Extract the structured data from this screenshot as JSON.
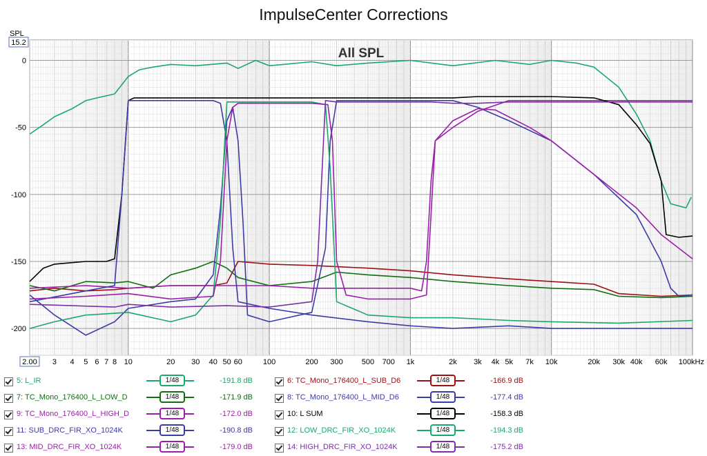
{
  "title": "ImpulseCenter Corrections",
  "chart_data": {
    "type": "line",
    "inner_title": "All SPL",
    "y_axis_label": "SPL",
    "y_top_readout": "15.2",
    "x_unit": "kHz",
    "x_scale": "log",
    "xlim": [
      2,
      100000
    ],
    "ylim": [
      -220,
      15.2
    ],
    "grid": true,
    "x_ticks": [
      {
        "v": 2,
        "label": "2.00"
      },
      {
        "v": 3,
        "label": "3"
      },
      {
        "v": 4,
        "label": "4"
      },
      {
        "v": 5,
        "label": "5"
      },
      {
        "v": 6,
        "label": "6"
      },
      {
        "v": 7,
        "label": "7"
      },
      {
        "v": 8,
        "label": "8"
      },
      {
        "v": 10,
        "label": "10"
      },
      {
        "v": 20,
        "label": "20"
      },
      {
        "v": 30,
        "label": "30"
      },
      {
        "v": 40,
        "label": "40"
      },
      {
        "v": 50,
        "label": "50"
      },
      {
        "v": 60,
        "label": "60"
      },
      {
        "v": 100,
        "label": "100"
      },
      {
        "v": 200,
        "label": "200"
      },
      {
        "v": 300,
        "label": "300"
      },
      {
        "v": 500,
        "label": "500"
      },
      {
        "v": 700,
        "label": "700"
      },
      {
        "v": 1000,
        "label": "1k"
      },
      {
        "v": 2000,
        "label": "2k"
      },
      {
        "v": 3000,
        "label": "3k"
      },
      {
        "v": 4000,
        "label": "4k"
      },
      {
        "v": 5000,
        "label": "5k"
      },
      {
        "v": 7000,
        "label": "7k"
      },
      {
        "v": 10000,
        "label": "10k"
      },
      {
        "v": 20000,
        "label": "20k"
      },
      {
        "v": 30000,
        "label": "30k"
      },
      {
        "v": 40000,
        "label": "40k"
      },
      {
        "v": 60000,
        "label": "60k"
      },
      {
        "v": 100000,
        "label": "100kHz"
      }
    ],
    "y_ticks": [
      {
        "v": 0,
        "label": "0"
      },
      {
        "v": -50,
        "label": "-50"
      },
      {
        "v": -100,
        "label": "-100"
      },
      {
        "v": -150,
        "label": "-150"
      },
      {
        "v": -200,
        "label": "-200"
      }
    ],
    "series": [
      {
        "name": "5: L_IR",
        "color": "#1aa86a",
        "value": "-191.8 dB",
        "points": [
          [
            2,
            -55
          ],
          [
            2.5,
            -48
          ],
          [
            3,
            -42
          ],
          [
            4,
            -36
          ],
          [
            5,
            -30
          ],
          [
            6,
            -28
          ],
          [
            8,
            -25
          ],
          [
            10,
            -12
          ],
          [
            12,
            -7
          ],
          [
            15,
            -5
          ],
          [
            20,
            -3
          ],
          [
            30,
            -4
          ],
          [
            50,
            -2
          ],
          [
            60,
            -6
          ],
          [
            80,
            0
          ],
          [
            100,
            -4
          ],
          [
            200,
            -1
          ],
          [
            300,
            -4
          ],
          [
            500,
            -2
          ],
          [
            1000,
            0
          ],
          [
            2000,
            -4
          ],
          [
            4000,
            0
          ],
          [
            7000,
            -3
          ],
          [
            10000,
            0
          ],
          [
            15000,
            -2
          ],
          [
            20000,
            -5
          ],
          [
            30000,
            -20
          ],
          [
            40000,
            -40
          ],
          [
            50000,
            -60
          ],
          [
            60000,
            -90
          ],
          [
            70000,
            -107
          ],
          [
            90000,
            -110
          ],
          [
            98000,
            -102
          ]
        ]
      },
      {
        "name": "6: TC_Mono_176400_L_SUB_D6",
        "color": "#9b1010",
        "value": "-166.9 dB",
        "points": [
          [
            2,
            -172
          ],
          [
            3,
            -170
          ],
          [
            5,
            -172
          ],
          [
            8,
            -171
          ],
          [
            10,
            -170
          ],
          [
            20,
            -168
          ],
          [
            40,
            -168
          ],
          [
            50,
            -166
          ],
          [
            60,
            -150
          ],
          [
            100,
            -152
          ],
          [
            200,
            -153
          ],
          [
            500,
            -155
          ],
          [
            1000,
            -157
          ],
          [
            2000,
            -160
          ],
          [
            5000,
            -163
          ],
          [
            10000,
            -165
          ],
          [
            20000,
            -167
          ],
          [
            30000,
            -174
          ],
          [
            60000,
            -176
          ],
          [
            100000,
            -175
          ]
        ]
      },
      {
        "name": "7: TC_Mono_176400_L_LOW_D",
        "color": "#0f6e0f",
        "value": "-171.9 dB",
        "points": [
          [
            2,
            -168
          ],
          [
            3,
            -172
          ],
          [
            5,
            -165
          ],
          [
            8,
            -166
          ],
          [
            10,
            -165
          ],
          [
            15,
            -170
          ],
          [
            20,
            -160
          ],
          [
            30,
            -155
          ],
          [
            40,
            -150
          ],
          [
            50,
            -155
          ],
          [
            60,
            -162
          ],
          [
            100,
            -168
          ],
          [
            200,
            -165
          ],
          [
            300,
            -158
          ],
          [
            500,
            -160
          ],
          [
            1000,
            -162
          ],
          [
            2000,
            -165
          ],
          [
            5000,
            -168
          ],
          [
            10000,
            -170
          ],
          [
            20000,
            -171
          ],
          [
            30000,
            -176
          ],
          [
            60000,
            -177
          ],
          [
            100000,
            -176
          ]
        ]
      },
      {
        "name": "8: TC_Mono_176400_L_MID_D6",
        "color": "#3b3ba8",
        "value": "-177.4 dB",
        "points": [
          [
            2,
            -175
          ],
          [
            3,
            -190
          ],
          [
            5,
            -205
          ],
          [
            8,
            -195
          ],
          [
            10,
            -185
          ],
          [
            20,
            -180
          ],
          [
            30,
            -178
          ],
          [
            40,
            -160
          ],
          [
            45,
            -110
          ],
          [
            50,
            -45
          ],
          [
            55,
            -35
          ],
          [
            60,
            -60
          ],
          [
            65,
            -120
          ],
          [
            70,
            -190
          ],
          [
            100,
            -195
          ],
          [
            200,
            -188
          ],
          [
            250,
            -140
          ],
          [
            270,
            -60
          ],
          [
            300,
            -30
          ],
          [
            500,
            -30
          ],
          [
            1000,
            -30
          ],
          [
            2000,
            -30
          ],
          [
            3000,
            -35
          ],
          [
            5000,
            -45
          ],
          [
            10000,
            -60
          ],
          [
            20000,
            -85
          ],
          [
            40000,
            -115
          ],
          [
            60000,
            -150
          ],
          [
            70000,
            -170
          ],
          [
            80000,
            -176
          ],
          [
            100000,
            -175
          ]
        ]
      },
      {
        "name": "9: TC_Mono_176400_L_HIGH_D",
        "color": "#9a1fa8",
        "value": "-172.0 dB",
        "points": [
          [
            2,
            -170
          ],
          [
            5,
            -168
          ],
          [
            10,
            -170
          ],
          [
            20,
            -168
          ],
          [
            50,
            -168
          ],
          [
            100,
            -168
          ],
          [
            200,
            -170
          ],
          [
            500,
            -170
          ],
          [
            1000,
            -170
          ],
          [
            1200,
            -172
          ],
          [
            1300,
            -150
          ],
          [
            1400,
            -90
          ],
          [
            1500,
            -60
          ],
          [
            2000,
            -50
          ],
          [
            3000,
            -38
          ],
          [
            5000,
            -30
          ],
          [
            10000,
            -30
          ],
          [
            30000,
            -30
          ],
          [
            100000,
            -30
          ]
        ]
      },
      {
        "name": "10: L SUM",
        "color": "#000000",
        "value": "-158.3 dB",
        "points": [
          [
            2,
            -165
          ],
          [
            2.5,
            -155
          ],
          [
            3,
            -152
          ],
          [
            5,
            -150
          ],
          [
            7,
            -150
          ],
          [
            8,
            -148
          ],
          [
            9,
            -100
          ],
          [
            10,
            -30
          ],
          [
            11,
            -28
          ],
          [
            20,
            -28
          ],
          [
            40,
            -28
          ],
          [
            100,
            -28
          ],
          [
            500,
            -28
          ],
          [
            1000,
            -28
          ],
          [
            2000,
            -28
          ],
          [
            3000,
            -27
          ],
          [
            5000,
            -27
          ],
          [
            10000,
            -27
          ],
          [
            20000,
            -28
          ],
          [
            30000,
            -33
          ],
          [
            40000,
            -48
          ],
          [
            50000,
            -62
          ],
          [
            60000,
            -90
          ],
          [
            65000,
            -130
          ],
          [
            80000,
            -132
          ],
          [
            100000,
            -131
          ]
        ]
      },
      {
        "name": "11: SUB_DRC_FIR_XO_1024K",
        "color": "#3b3ba8",
        "value": "-190.8 dB",
        "points": [
          [
            2,
            -180
          ],
          [
            5,
            -172
          ],
          [
            8,
            -168
          ],
          [
            9,
            -100
          ],
          [
            10,
            -30
          ],
          [
            20,
            -30
          ],
          [
            40,
            -30
          ],
          [
            45,
            -32
          ],
          [
            50,
            -60
          ],
          [
            55,
            -140
          ],
          [
            60,
            -180
          ],
          [
            100,
            -185
          ],
          [
            200,
            -190
          ],
          [
            500,
            -195
          ],
          [
            1000,
            -198
          ],
          [
            2000,
            -200
          ],
          [
            5000,
            -198
          ],
          [
            10000,
            -200
          ],
          [
            30000,
            -200
          ],
          [
            100000,
            -200
          ]
        ]
      },
      {
        "name": "12: LOW_DRC_FIR_XO_1024K",
        "color": "#1aa86a",
        "value": "-194.3 dB",
        "points": [
          [
            2,
            -200
          ],
          [
            3,
            -195
          ],
          [
            5,
            -190
          ],
          [
            10,
            -188
          ],
          [
            20,
            -195
          ],
          [
            30,
            -190
          ],
          [
            40,
            -175
          ],
          [
            45,
            -120
          ],
          [
            50,
            -31
          ],
          [
            100,
            -31
          ],
          [
            200,
            -31
          ],
          [
            250,
            -33
          ],
          [
            270,
            -80
          ],
          [
            300,
            -180
          ],
          [
            500,
            -190
          ],
          [
            1000,
            -192
          ],
          [
            2000,
            -192
          ],
          [
            5000,
            -194
          ],
          [
            10000,
            -195
          ],
          [
            30000,
            -196
          ],
          [
            100000,
            -194
          ]
        ]
      },
      {
        "name": "13: MID_DRC_FIR_XO_1024K",
        "color": "#9a1fa8",
        "value": "-179.0 dB",
        "points": [
          [
            2,
            -178
          ],
          [
            5,
            -176
          ],
          [
            10,
            -174
          ],
          [
            20,
            -178
          ],
          [
            40,
            -176
          ],
          [
            45,
            -150
          ],
          [
            50,
            -60
          ],
          [
            55,
            -35
          ],
          [
            60,
            -32
          ],
          [
            100,
            -32
          ],
          [
            200,
            -32
          ],
          [
            260,
            -33
          ],
          [
            280,
            -60
          ],
          [
            300,
            -150
          ],
          [
            350,
            -175
          ],
          [
            500,
            -178
          ],
          [
            1000,
            -178
          ],
          [
            1300,
            -175
          ],
          [
            1500,
            -60
          ],
          [
            2000,
            -45
          ],
          [
            3000,
            -36
          ],
          [
            4000,
            -37
          ],
          [
            7000,
            -50
          ],
          [
            10000,
            -60
          ],
          [
            20000,
            -85
          ],
          [
            40000,
            -110
          ],
          [
            60000,
            -130
          ],
          [
            100000,
            -148
          ]
        ]
      },
      {
        "name": "14: HIGH_DRC_FIR_XO_1024K",
        "color": "#7a2ea8",
        "value": "-175.2 dB",
        "points": [
          [
            2,
            -182
          ],
          [
            4,
            -183
          ],
          [
            8,
            -184
          ],
          [
            10,
            -182
          ],
          [
            20,
            -184
          ],
          [
            50,
            -183
          ],
          [
            100,
            -184
          ],
          [
            200,
            -180
          ],
          [
            220,
            -150
          ],
          [
            250,
            -30
          ],
          [
            300,
            -31
          ],
          [
            500,
            -31
          ],
          [
            1000,
            -31
          ],
          [
            1400,
            -31
          ],
          [
            2000,
            -32
          ],
          [
            3000,
            -32
          ],
          [
            5000,
            -31
          ],
          [
            10000,
            -31
          ],
          [
            30000,
            -31
          ],
          [
            60000,
            -31
          ],
          [
            100000,
            -31
          ]
        ]
      }
    ]
  },
  "legend": [
    {
      "name": "5: L_IR",
      "smoothing": "1/48",
      "value": "-191.8 dB",
      "color": "#1aa86a"
    },
    {
      "name": "6: TC_Mono_176400_L_SUB_D6",
      "smoothing": "1/48",
      "value": "-166.9 dB",
      "color": "#9b1010"
    },
    {
      "name": "7: TC_Mono_176400_L_LOW_D",
      "smoothing": "1/48",
      "value": "-171.9 dB",
      "color": "#0f6e0f"
    },
    {
      "name": "8: TC_Mono_176400_L_MID_D6",
      "smoothing": "1/48",
      "value": "-177.4 dB",
      "color": "#3b3ba8"
    },
    {
      "name": "9: TC_Mono_176400_L_HIGH_D",
      "smoothing": "1/48",
      "value": "-172.0 dB",
      "color": "#9a1fa8"
    },
    {
      "name": "10: L SUM",
      "smoothing": "1/48",
      "value": "-158.3 dB",
      "color": "#000000"
    },
    {
      "name": "11: SUB_DRC_FIR_XO_1024K",
      "smoothing": "1/48",
      "value": "-190.8 dB",
      "color": "#3b3ba8"
    },
    {
      "name": "12: LOW_DRC_FIR_XO_1024K",
      "smoothing": "1/48",
      "value": "-194.3 dB",
      "color": "#1aa86a"
    },
    {
      "name": "13: MID_DRC_FIR_XO_1024K",
      "smoothing": "1/48",
      "value": "-179.0 dB",
      "color": "#9a1fa8"
    },
    {
      "name": "14: HIGH_DRC_FIR_XO_1024K",
      "smoothing": "1/48",
      "value": "-175.2 dB",
      "color": "#7a2ea8"
    }
  ]
}
